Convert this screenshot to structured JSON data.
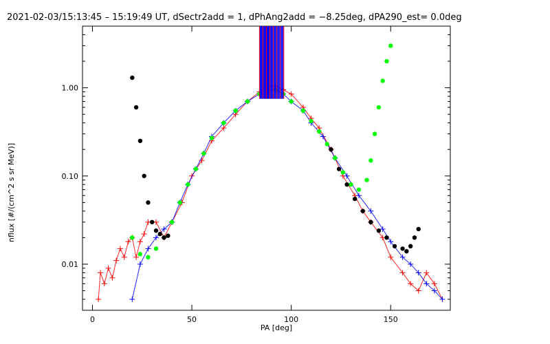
{
  "chart_data": {
    "type": "line",
    "title": "2021-02-03/15:13:45 – 15:19:49 UT, dSectr2add = 1, dPhAng2add = −8.25deg, dPA290_est=   0.0deg",
    "xlabel": "PA [deg]",
    "ylabel": "nflux [#/(cm^2 s sr MeV)]",
    "xlim": [
      -5,
      180
    ],
    "ylim": [
      0.003,
      5.0
    ],
    "yscale": "log",
    "x_ticks": [
      0,
      50,
      100,
      150
    ],
    "x_tick_labels": [
      "0",
      "50",
      "100",
      "150"
    ],
    "y_ticks": [
      0.01,
      0.1,
      1.0
    ],
    "y_tick_labels": [
      "0.01",
      "0.10",
      "1.00"
    ],
    "grid": false,
    "legend": "none",
    "colors": {
      "red": "#ff0000",
      "blue": "#0000ff",
      "green": "#00ff00",
      "black": "#000000"
    },
    "series": [
      {
        "color": "red",
        "marker": "plus",
        "style": "thin-lines",
        "points": [
          [
            3,
            0.004
          ],
          [
            4,
            0.008
          ],
          [
            6,
            0.006
          ],
          [
            8,
            0.009
          ],
          [
            10,
            0.007
          ],
          [
            12,
            0.011
          ],
          [
            14,
            0.015
          ],
          [
            16,
            0.012
          ],
          [
            18,
            0.018
          ],
          [
            20,
            0.02
          ],
          [
            22,
            0.012
          ],
          [
            24,
            0.018
          ],
          [
            26,
            0.022
          ],
          [
            28,
            0.03
          ],
          [
            32,
            0.03
          ],
          [
            36,
            0.02
          ],
          [
            40,
            0.03
          ],
          [
            45,
            0.05
          ],
          [
            50,
            0.1
          ],
          [
            55,
            0.15
          ],
          [
            60,
            0.25
          ],
          [
            66,
            0.35
          ],
          [
            72,
            0.5
          ],
          [
            78,
            0.7
          ],
          [
            84,
            0.9
          ],
          [
            88,
            1.05
          ],
          [
            92,
            1.05
          ],
          [
            96,
            0.95
          ],
          [
            100,
            0.85
          ],
          [
            106,
            0.6
          ],
          [
            110,
            0.45
          ],
          [
            114,
            0.35
          ],
          [
            120,
            0.2
          ],
          [
            126,
            0.1
          ],
          [
            132,
            0.06
          ],
          [
            136,
            0.04
          ],
          [
            140,
            0.03
          ],
          [
            146,
            0.02
          ],
          [
            150,
            0.012
          ],
          [
            156,
            0.008
          ],
          [
            160,
            0.006
          ],
          [
            164,
            0.005
          ],
          [
            168,
            0.008
          ],
          [
            172,
            0.006
          ],
          [
            176,
            0.004
          ]
        ]
      },
      {
        "color": "blue",
        "marker": "plus",
        "style": "thin-lines",
        "points": [
          [
            20,
            0.004
          ],
          [
            24,
            0.01
          ],
          [
            28,
            0.015
          ],
          [
            32,
            0.02
          ],
          [
            36,
            0.025
          ],
          [
            40,
            0.03
          ],
          [
            44,
            0.05
          ],
          [
            48,
            0.08
          ],
          [
            52,
            0.12
          ],
          [
            56,
            0.18
          ],
          [
            60,
            0.28
          ],
          [
            66,
            0.4
          ],
          [
            72,
            0.55
          ],
          [
            78,
            0.7
          ],
          [
            84,
            0.85
          ],
          [
            88,
            0.95
          ],
          [
            92,
            0.95
          ],
          [
            96,
            0.85
          ],
          [
            100,
            0.7
          ],
          [
            106,
            0.55
          ],
          [
            110,
            0.4
          ],
          [
            116,
            0.28
          ],
          [
            122,
            0.16
          ],
          [
            128,
            0.1
          ],
          [
            134,
            0.06
          ],
          [
            140,
            0.04
          ],
          [
            146,
            0.025
          ],
          [
            150,
            0.018
          ],
          [
            156,
            0.012
          ],
          [
            160,
            0.01
          ],
          [
            164,
            0.008
          ],
          [
            168,
            0.006
          ],
          [
            172,
            0.005
          ],
          [
            176,
            0.004
          ]
        ]
      },
      {
        "color": "green",
        "marker": "filled-circle",
        "style": "dense-dots",
        "points": [
          [
            20,
            0.02
          ],
          [
            24,
            0.013
          ],
          [
            28,
            0.012
          ],
          [
            32,
            0.015
          ],
          [
            36,
            0.02
          ],
          [
            40,
            0.03
          ],
          [
            44,
            0.05
          ],
          [
            48,
            0.08
          ],
          [
            52,
            0.12
          ],
          [
            56,
            0.18
          ],
          [
            60,
            0.27
          ],
          [
            66,
            0.4
          ],
          [
            72,
            0.55
          ],
          [
            78,
            0.7
          ],
          [
            84,
            0.85
          ],
          [
            88,
            0.95
          ],
          [
            92,
            0.95
          ],
          [
            96,
            0.85
          ],
          [
            100,
            0.7
          ],
          [
            106,
            0.55
          ],
          [
            110,
            0.42
          ],
          [
            114,
            0.32
          ],
          [
            118,
            0.23
          ],
          [
            122,
            0.16
          ],
          [
            126,
            0.11
          ],
          [
            130,
            0.08
          ],
          [
            134,
            0.07
          ],
          [
            138,
            0.09
          ],
          [
            140,
            0.15
          ],
          [
            142,
            0.3
          ],
          [
            144,
            0.6
          ],
          [
            146,
            1.2
          ],
          [
            148,
            2.0
          ],
          [
            150,
            3.0
          ]
        ]
      },
      {
        "color": "black",
        "marker": "filled-circle",
        "style": "dense-dots",
        "points": [
          [
            20,
            1.3
          ],
          [
            22,
            0.6
          ],
          [
            24,
            0.25
          ],
          [
            26,
            0.1
          ],
          [
            28,
            0.05
          ],
          [
            30,
            0.03
          ],
          [
            32,
            0.024
          ],
          [
            34,
            0.022
          ],
          [
            36,
            0.02
          ],
          [
            38,
            0.021
          ],
          [
            120,
            0.2
          ],
          [
            124,
            0.12
          ],
          [
            128,
            0.08
          ],
          [
            132,
            0.055
          ],
          [
            136,
            0.04
          ],
          [
            140,
            0.03
          ],
          [
            144,
            0.024
          ],
          [
            148,
            0.02
          ],
          [
            152,
            0.016
          ],
          [
            156,
            0.015
          ],
          [
            158,
            0.014
          ],
          [
            160,
            0.016
          ],
          [
            162,
            0.02
          ],
          [
            164,
            0.025
          ]
        ]
      }
    ]
  }
}
